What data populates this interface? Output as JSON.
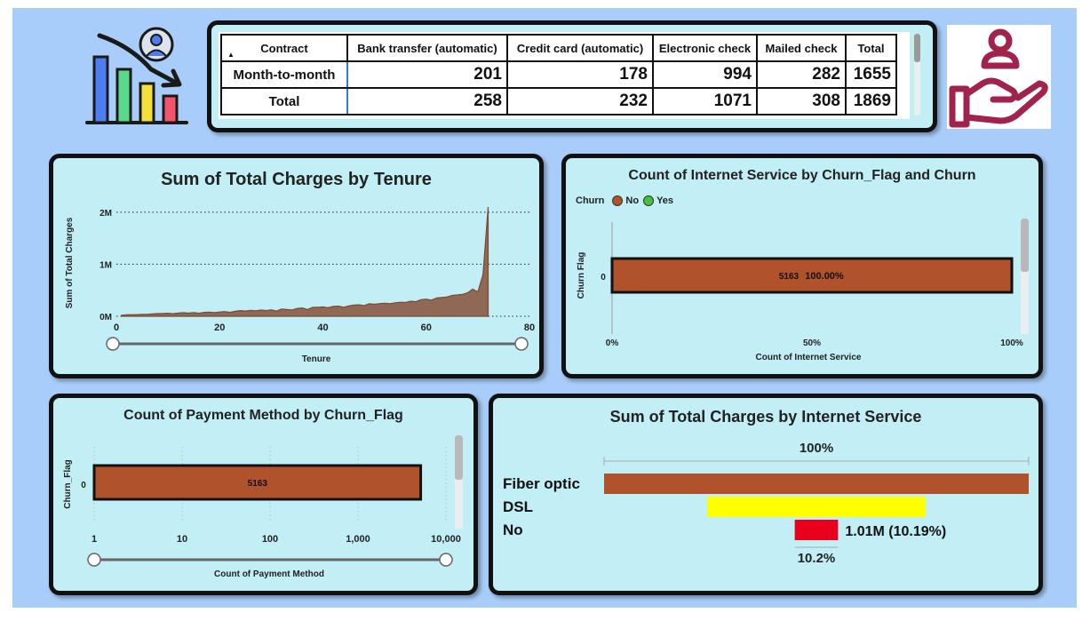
{
  "matrix": {
    "columns": [
      "Contract",
      "Bank transfer (automatic)",
      "Credit card (automatic)",
      "Electronic check",
      "Mailed check",
      "Total"
    ],
    "rows": [
      {
        "label": "Month-to-month",
        "values": [
          "201",
          "178",
          "994",
          "282",
          "1655"
        ]
      },
      {
        "label": "Total",
        "values": [
          "258",
          "232",
          "1071",
          "308",
          "1869"
        ]
      }
    ]
  },
  "icons": {
    "left": "chart-decline-user-icon",
    "right": "hand-user-icon"
  },
  "colors": {
    "background": "#a9cdfa",
    "panel": "#c2eef5",
    "no": "#b0522c",
    "yes": "#44c23c",
    "area": "#8a5a44"
  },
  "chart_data": [
    {
      "type": "area",
      "title": "Sum of Total Charges by Tenure",
      "xlabel": "Tenure",
      "ylabel": "Sum of Total Charges",
      "xlim": [
        0,
        80
      ],
      "xticks": [
        "0",
        "20",
        "40",
        "60",
        "80"
      ],
      "yticks": [
        {
          "label": "0M",
          "value": 0
        },
        {
          "label": "1M",
          "value": 1000000
        },
        {
          "label": "2M",
          "value": 2000000
        }
      ],
      "ylim": [
        0,
        2100000
      ],
      "x": [
        1,
        2,
        3,
        4,
        5,
        6,
        7,
        8,
        9,
        10,
        11,
        12,
        13,
        14,
        15,
        16,
        17,
        18,
        19,
        20,
        21,
        22,
        23,
        24,
        25,
        26,
        27,
        28,
        29,
        30,
        31,
        32,
        33,
        34,
        35,
        36,
        37,
        38,
        39,
        40,
        41,
        42,
        43,
        44,
        45,
        46,
        47,
        48,
        49,
        50,
        51,
        52,
        53,
        54,
        55,
        56,
        57,
        58,
        59,
        60,
        61,
        62,
        63,
        64,
        65,
        66,
        67,
        68,
        69,
        70,
        71,
        72
      ],
      "y": [
        20000,
        28000,
        30000,
        32000,
        38000,
        40000,
        45000,
        52000,
        55000,
        58000,
        50000,
        62000,
        68000,
        60000,
        72000,
        58000,
        75000,
        80000,
        70000,
        82000,
        90000,
        75000,
        95000,
        110000,
        100000,
        115000,
        105000,
        120000,
        110000,
        125000,
        100000,
        140000,
        130000,
        120000,
        150000,
        160000,
        130000,
        170000,
        175000,
        180000,
        165000,
        190000,
        195000,
        175000,
        200000,
        215000,
        220000,
        205000,
        240000,
        230000,
        245000,
        250000,
        240000,
        260000,
        270000,
        265000,
        290000,
        280000,
        320000,
        330000,
        310000,
        350000,
        360000,
        370000,
        400000,
        410000,
        420000,
        450000,
        520000,
        470000,
        800000,
        2100000
      ],
      "grid": true
    },
    {
      "type": "bar",
      "orientation": "horizontal",
      "stacked": "100%",
      "title": "Count of Internet Service by Churn_Flag and Churn",
      "legend_title": "Churn",
      "legend": [
        {
          "name": "No",
          "color": "#b0522c"
        },
        {
          "name": "Yes",
          "color": "#44c23c"
        }
      ],
      "categories": [
        "0"
      ],
      "series": [
        {
          "name": "No",
          "values": [
            5163
          ],
          "label": "5163",
          "pct_label": "100.00%"
        }
      ],
      "ylabel": "Churn Flag",
      "xlabel": "Count of Internet Service",
      "xticks": [
        "0%",
        "50%",
        "100%"
      ]
    },
    {
      "type": "bar",
      "orientation": "horizontal",
      "scale": "log",
      "title": "Count of Payment Method by Churn_Flag",
      "categories": [
        "0"
      ],
      "values": [
        5163
      ],
      "value_label": "5163",
      "ylabel": "Churn_Flag",
      "xlabel": "Count of Payment Method",
      "xlim": [
        1,
        10000
      ],
      "xticks": [
        {
          "label": "1",
          "value": 1
        },
        {
          "label": "10",
          "value": 10
        },
        {
          "label": "100",
          "value": 100
        },
        {
          "label": "1,000",
          "value": 1000
        },
        {
          "label": "10,000",
          "value": 10000
        }
      ]
    },
    {
      "type": "bar",
      "orientation": "horizontal",
      "funnel": true,
      "title": "Sum of Total Charges by Internet Service",
      "categories": [
        "Fiber optic",
        "DSL",
        "No"
      ],
      "percent_of_first": [
        100,
        51.4,
        10.19
      ],
      "colors": [
        "#b0522c",
        "#ffff00",
        "#e8001c"
      ],
      "top_label": "100%",
      "bottom_label": "10.2%",
      "data_label": "1.01M (10.19%)"
    }
  ]
}
